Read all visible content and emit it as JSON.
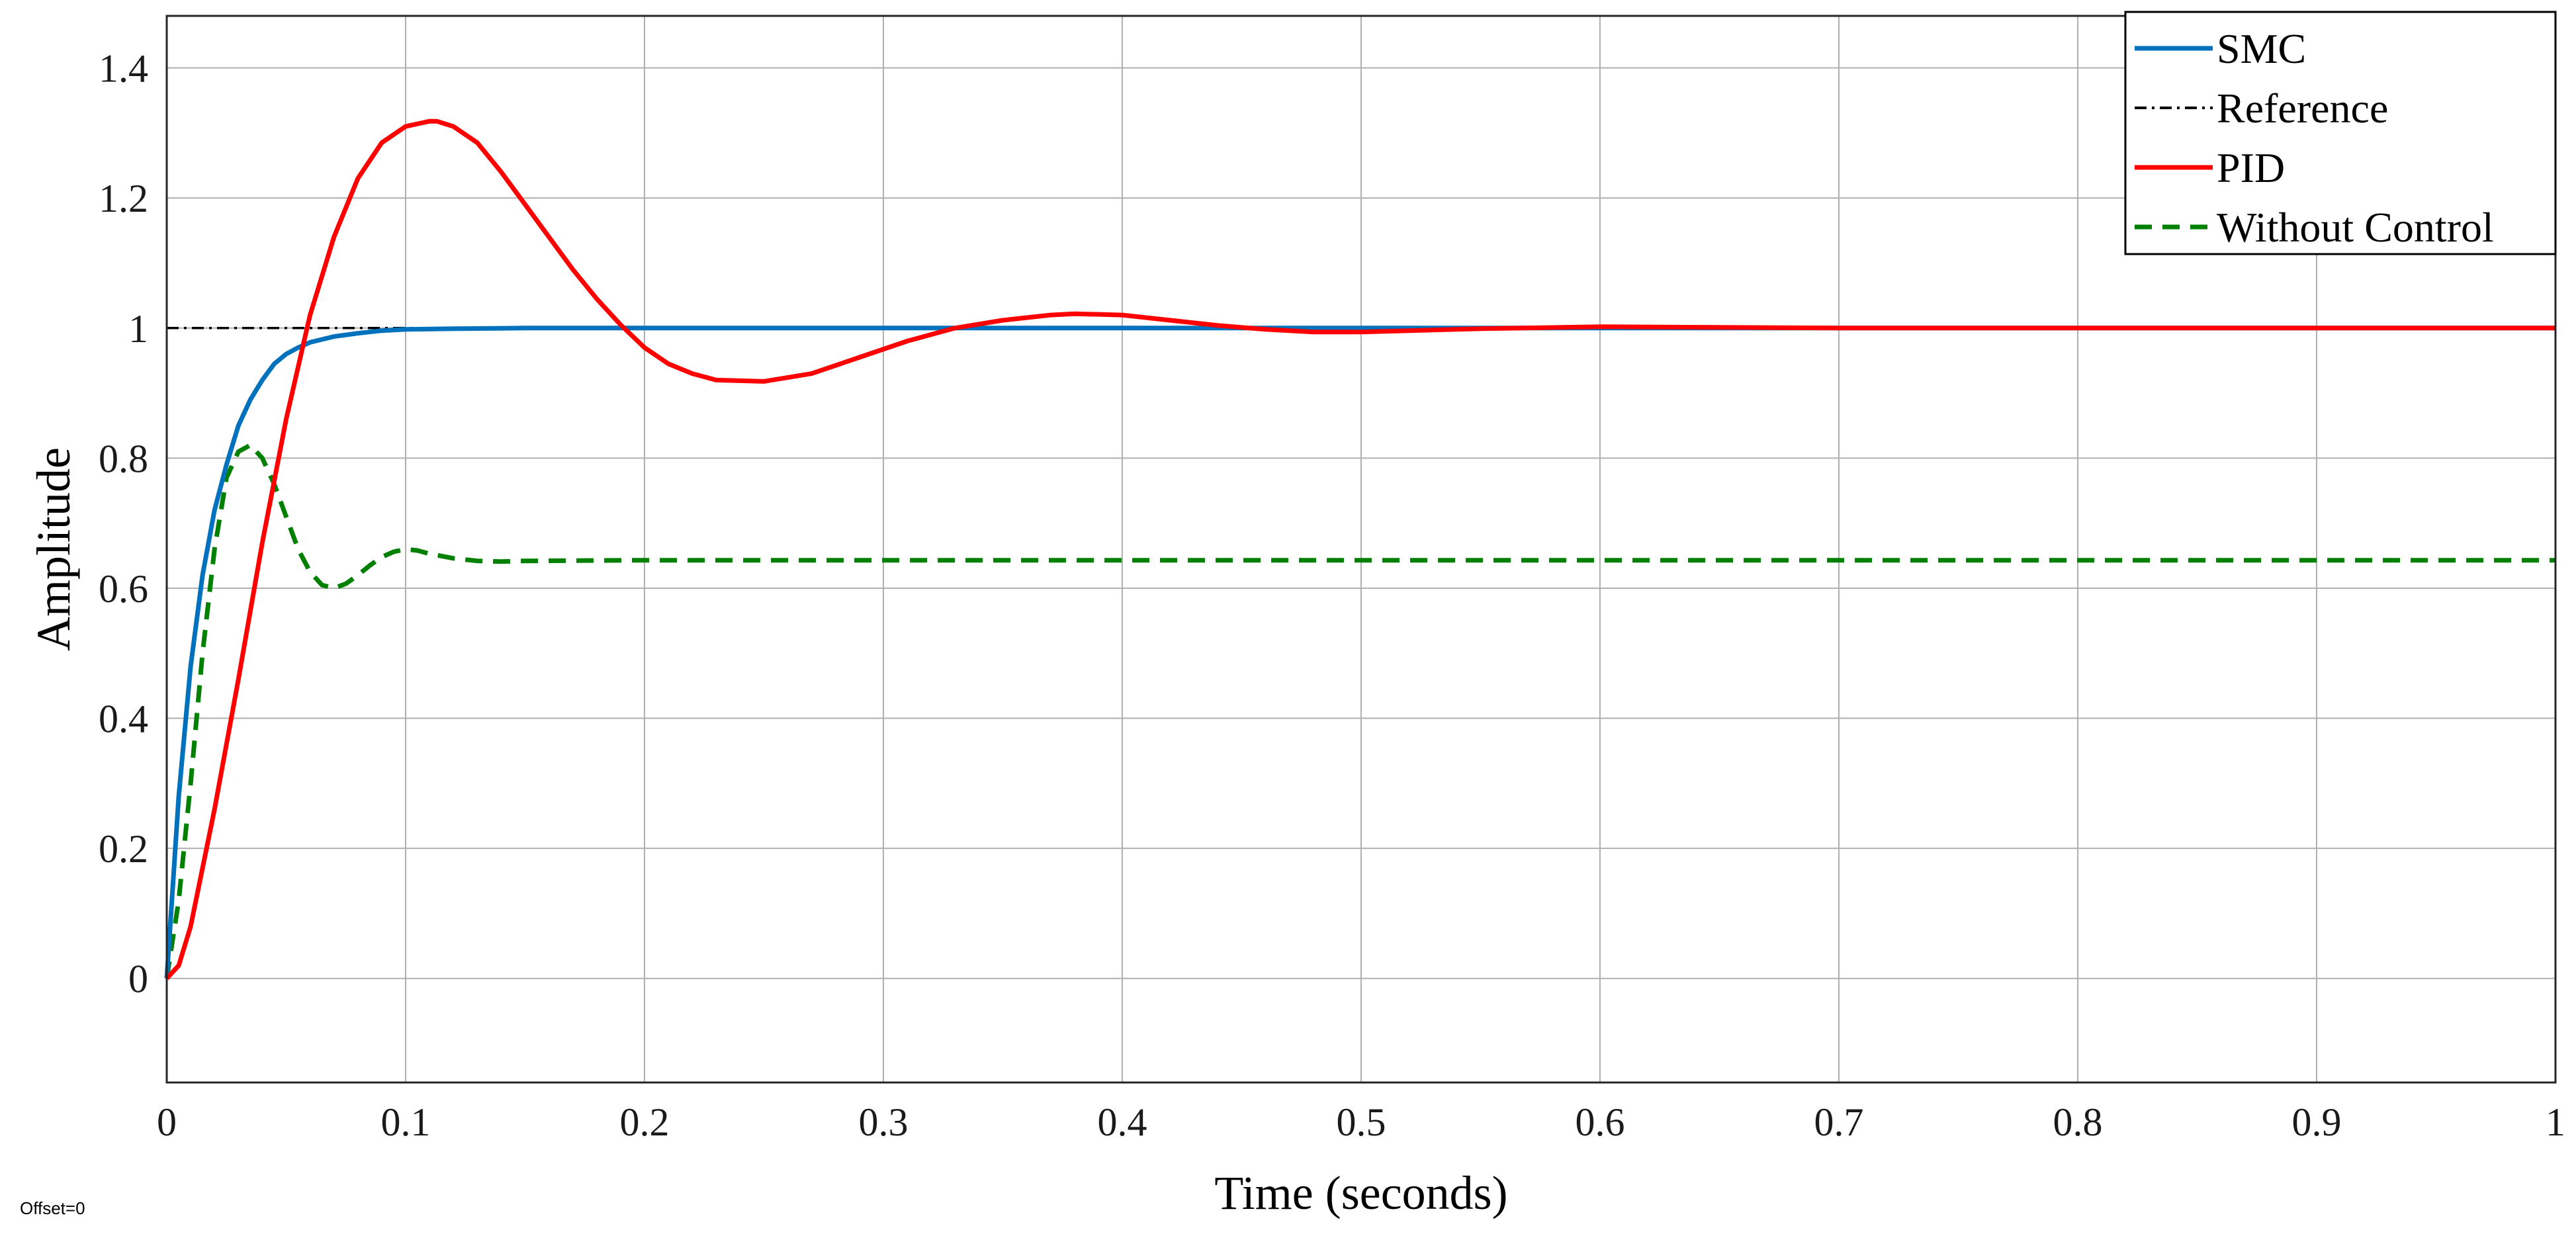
{
  "offset_label": "Offset=0",
  "chart_data": {
    "type": "line",
    "title": "",
    "xlabel": "Time (seconds)",
    "ylabel": "Amplitude",
    "xlim": [
      0,
      1
    ],
    "ylim": [
      -0.16,
      1.48
    ],
    "x_ticks": [
      0,
      0.1,
      0.2,
      0.3,
      0.4,
      0.5,
      0.6,
      0.7,
      0.8,
      0.9,
      1
    ],
    "x_tick_labels": [
      "0",
      "0.1",
      "0.2",
      "0.3",
      "0.4",
      "0.5",
      "0.6",
      "0.7",
      "0.8",
      "0.9",
      "1"
    ],
    "y_ticks": [
      0,
      0.2,
      0.4,
      0.6,
      0.8,
      1,
      1.2,
      1.4
    ],
    "y_tick_labels": [
      "0",
      "0.2",
      "0.4",
      "0.6",
      "0.8",
      "1",
      "1.2",
      "1.4"
    ],
    "grid": true,
    "legend_position": "top-right",
    "series": [
      {
        "name": "SMC",
        "color": "#0072BD",
        "style": "solid",
        "x": [
          0,
          0.005,
          0.01,
          0.015,
          0.02,
          0.025,
          0.03,
          0.035,
          0.04,
          0.045,
          0.05,
          0.055,
          0.06,
          0.07,
          0.08,
          0.09,
          0.1,
          0.12,
          0.15,
          0.2,
          0.3,
          0.5,
          0.7,
          1
        ],
        "y": [
          0,
          0.28,
          0.48,
          0.62,
          0.72,
          0.79,
          0.85,
          0.89,
          0.92,
          0.945,
          0.96,
          0.97,
          0.978,
          0.987,
          0.992,
          0.996,
          0.998,
          0.999,
          1.0,
          1.0,
          1.0,
          1.0,
          1.0,
          1.0
        ]
      },
      {
        "name": "Reference",
        "color": "#000000",
        "style": "dashdot",
        "x": [
          0,
          1
        ],
        "y": [
          1,
          1
        ]
      },
      {
        "name": "PID",
        "color": "#FF0000",
        "style": "solid",
        "x": [
          0,
          0.005,
          0.01,
          0.02,
          0.03,
          0.04,
          0.05,
          0.06,
          0.07,
          0.08,
          0.09,
          0.1,
          0.11,
          0.113,
          0.12,
          0.13,
          0.14,
          0.15,
          0.16,
          0.17,
          0.18,
          0.19,
          0.2,
          0.21,
          0.22,
          0.23,
          0.25,
          0.27,
          0.29,
          0.31,
          0.33,
          0.35,
          0.37,
          0.38,
          0.4,
          0.42,
          0.44,
          0.46,
          0.48,
          0.5,
          0.52,
          0.55,
          0.6,
          0.65,
          0.7,
          0.8,
          0.9,
          1
        ],
        "y": [
          0,
          0.02,
          0.08,
          0.26,
          0.46,
          0.67,
          0.86,
          1.02,
          1.14,
          1.23,
          1.285,
          1.31,
          1.318,
          1.318,
          1.31,
          1.285,
          1.24,
          1.19,
          1.14,
          1.09,
          1.045,
          1.005,
          0.97,
          0.945,
          0.93,
          0.92,
          0.918,
          0.93,
          0.955,
          0.98,
          1.0,
          1.012,
          1.02,
          1.022,
          1.02,
          1.012,
          1.004,
          0.998,
          0.994,
          0.994,
          0.996,
          0.999,
          1.002,
          1.001,
          1.0,
          1.0,
          1.0,
          1.0
        ]
      },
      {
        "name": "Without Control",
        "color": "#008000",
        "style": "dashed",
        "x": [
          0,
          0.005,
          0.01,
          0.015,
          0.02,
          0.025,
          0.03,
          0.035,
          0.04,
          0.045,
          0.05,
          0.055,
          0.06,
          0.065,
          0.07,
          0.075,
          0.08,
          0.085,
          0.09,
          0.095,
          0.1,
          0.105,
          0.11,
          0.12,
          0.13,
          0.14,
          0.15,
          0.2,
          0.3,
          0.5,
          0.7,
          1
        ],
        "y": [
          0,
          0.12,
          0.3,
          0.5,
          0.66,
          0.77,
          0.81,
          0.82,
          0.8,
          0.76,
          0.71,
          0.66,
          0.625,
          0.605,
          0.6,
          0.607,
          0.62,
          0.635,
          0.648,
          0.656,
          0.66,
          0.658,
          0.653,
          0.646,
          0.642,
          0.641,
          0.642,
          0.643,
          0.643,
          0.643,
          0.643,
          0.643
        ]
      }
    ]
  }
}
